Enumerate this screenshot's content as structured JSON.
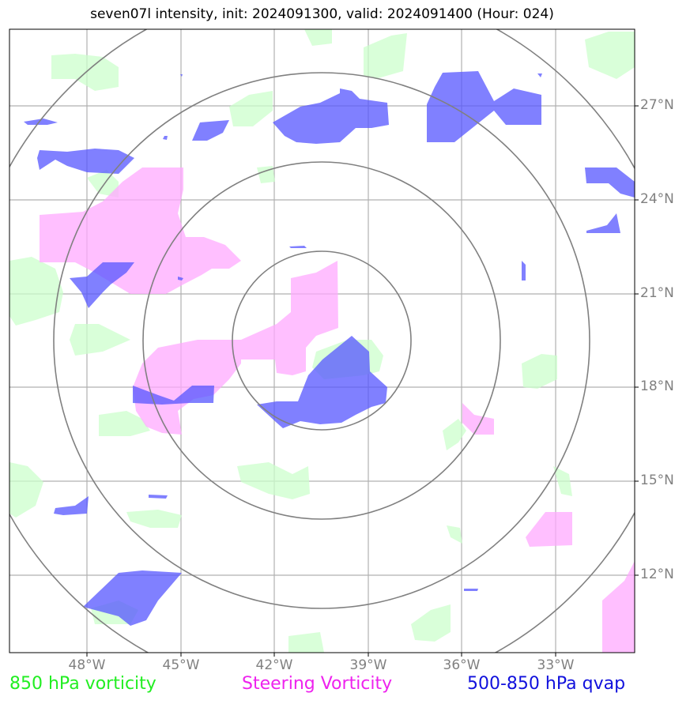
{
  "title": "seven07l intensity, init: 2024091300, valid: 2024091400 (Hour: 024)",
  "lat_labels": [
    "27°N",
    "24°N",
    "21°N",
    "18°N",
    "15°N",
    "12°N"
  ],
  "lon_labels": [
    "48°W",
    "45°W",
    "42°W",
    "39°W",
    "36°W",
    "33°W"
  ],
  "legend": {
    "green": "850 hPa vorticity",
    "magenta": "Steering Vorticity",
    "blue": "500-850 hPa qvap"
  },
  "colors": {
    "green_fill": "#ccffcc",
    "magenta_fill": "#ffaaff",
    "blue_fill": "#5555ff",
    "grid": "#b0b0b0",
    "range_ring": "#808080"
  }
}
